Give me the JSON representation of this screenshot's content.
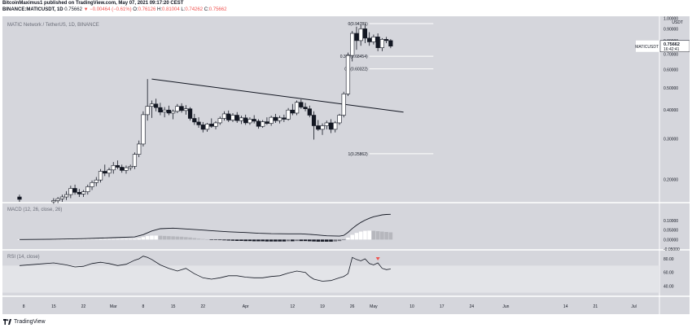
{
  "header": {
    "publish_line": "BitcoinMaximus1 published on TradingView.com, May 07, 2021 09:17:20 CEST",
    "symbol": "BINANCE:MATICUSDT, 1D",
    "last": "0.75662",
    "change": "▼ −0.00464 (−0.61%)",
    "o_label": "O:",
    "o": "0.76126",
    "h_label": "H:",
    "h": "0.81004",
    "l_label": "L:",
    "l": "0.74262",
    "c_label": "C:",
    "c": "0.75662"
  },
  "colors": {
    "pane_bg": "#d5d6dc",
    "up_candle": "#ffffff",
    "down_candle": "#131722",
    "line": "#131722",
    "rsi_signal": "#ef5350"
  },
  "footer": {
    "brand": "TradingView"
  },
  "chart_data": [
    {
      "type": "candlestick",
      "title": "MATIC Network / TetherUS, 1D, BINANCE",
      "currency": "USDT",
      "y_scale": "log",
      "ylim": [
        0.16,
        1.02
      ],
      "y_ticks": [
        {
          "value": 1.0,
          "label": "1.00000"
        },
        {
          "value": 0.9,
          "label": "0.90000"
        },
        {
          "value": 0.8,
          "label": "0.80000"
        },
        {
          "value": 0.7,
          "label": "0.70000"
        },
        {
          "value": 0.6,
          "label": "0.60000"
        },
        {
          "value": 0.5,
          "label": "0.50000"
        },
        {
          "value": 0.4,
          "label": "0.40000"
        },
        {
          "value": 0.3,
          "label": "0.30000"
        },
        {
          "value": 0.2,
          "label": "0.20000"
        }
      ],
      "price_badge": {
        "symbol": "MATICUSDT",
        "value": 0.75662,
        "label": "0.75662",
        "countdown": "16:42:41"
      },
      "fib_levels": [
        {
          "value": 0.94781,
          "label": "0(0.94781)"
        },
        {
          "value": 0.68454,
          "label": "0.382(0.68454)"
        },
        {
          "value": 0.60322,
          "label": "0.5(0.60322)"
        },
        {
          "value": 0.25862,
          "label": "1(0.25862)"
        }
      ],
      "trendline": {
        "from": {
          "day": 38,
          "value": 0.545
        },
        "to": {
          "day": 97,
          "value": 0.392
        }
      },
      "x_ticks": [
        {
          "day": 8,
          "label": "8"
        },
        {
          "day": 15,
          "label": "15"
        },
        {
          "day": 22,
          "label": "22"
        },
        {
          "day": 29,
          "label": "Mar"
        },
        {
          "day": 36,
          "label": "8"
        },
        {
          "day": 43,
          "label": "15"
        },
        {
          "day": 50,
          "label": "22"
        },
        {
          "day": 60,
          "label": "Apr"
        },
        {
          "day": 71,
          "label": "12"
        },
        {
          "day": 78,
          "label": "19"
        },
        {
          "day": 85,
          "label": "26"
        },
        {
          "day": 90,
          "label": "May"
        },
        {
          "day": 99,
          "label": "10"
        },
        {
          "day": 106,
          "label": "17"
        },
        {
          "day": 113,
          "label": "24"
        },
        {
          "day": 121,
          "label": "Jun"
        },
        {
          "day": 135,
          "label": "14"
        },
        {
          "day": 142,
          "label": "21"
        },
        {
          "day": 151,
          "label": "Jul"
        }
      ],
      "x_range": [
        3,
        157
      ],
      "candles": [
        {
          "day": 7,
          "o": 0.168,
          "h": 0.172,
          "l": 0.16,
          "c": 0.164
        },
        {
          "day": 15,
          "o": 0.16,
          "h": 0.166,
          "l": 0.157,
          "c": 0.162
        },
        {
          "day": 16,
          "o": 0.162,
          "h": 0.168,
          "l": 0.158,
          "c": 0.165
        },
        {
          "day": 17,
          "o": 0.165,
          "h": 0.172,
          "l": 0.16,
          "c": 0.168
        },
        {
          "day": 18,
          "o": 0.168,
          "h": 0.178,
          "l": 0.163,
          "c": 0.172
        },
        {
          "day": 19,
          "o": 0.172,
          "h": 0.188,
          "l": 0.166,
          "c": 0.183
        },
        {
          "day": 20,
          "o": 0.183,
          "h": 0.19,
          "l": 0.172,
          "c": 0.176
        },
        {
          "day": 21,
          "o": 0.176,
          "h": 0.182,
          "l": 0.168,
          "c": 0.173
        },
        {
          "day": 22,
          "o": 0.173,
          "h": 0.18,
          "l": 0.168,
          "c": 0.177
        },
        {
          "day": 23,
          "o": 0.177,
          "h": 0.19,
          "l": 0.172,
          "c": 0.186
        },
        {
          "day": 24,
          "o": 0.186,
          "h": 0.198,
          "l": 0.18,
          "c": 0.194
        },
        {
          "day": 25,
          "o": 0.194,
          "h": 0.205,
          "l": 0.187,
          "c": 0.199
        },
        {
          "day": 26,
          "o": 0.199,
          "h": 0.222,
          "l": 0.194,
          "c": 0.217
        },
        {
          "day": 27,
          "o": 0.217,
          "h": 0.232,
          "l": 0.207,
          "c": 0.213
        },
        {
          "day": 28,
          "o": 0.213,
          "h": 0.225,
          "l": 0.205,
          "c": 0.22
        },
        {
          "day": 29,
          "o": 0.22,
          "h": 0.238,
          "l": 0.212,
          "c": 0.23
        },
        {
          "day": 30,
          "o": 0.23,
          "h": 0.242,
          "l": 0.222,
          "c": 0.226
        },
        {
          "day": 31,
          "o": 0.226,
          "h": 0.232,
          "l": 0.214,
          "c": 0.219
        },
        {
          "day": 32,
          "o": 0.219,
          "h": 0.23,
          "l": 0.212,
          "c": 0.225
        },
        {
          "day": 33,
          "o": 0.225,
          "h": 0.232,
          "l": 0.219,
          "c": 0.228
        },
        {
          "day": 34,
          "o": 0.228,
          "h": 0.262,
          "l": 0.222,
          "c": 0.257
        },
        {
          "day": 35,
          "o": 0.257,
          "h": 0.295,
          "l": 0.25,
          "c": 0.285
        },
        {
          "day": 36,
          "o": 0.285,
          "h": 0.395,
          "l": 0.278,
          "c": 0.382
        },
        {
          "day": 37,
          "o": 0.382,
          "h": 0.545,
          "l": 0.36,
          "c": 0.415
        },
        {
          "day": 38,
          "o": 0.415,
          "h": 0.44,
          "l": 0.37,
          "c": 0.425
        },
        {
          "day": 39,
          "o": 0.425,
          "h": 0.448,
          "l": 0.395,
          "c": 0.41
        },
        {
          "day": 40,
          "o": 0.41,
          "h": 0.43,
          "l": 0.38,
          "c": 0.392
        },
        {
          "day": 41,
          "o": 0.392,
          "h": 0.412,
          "l": 0.372,
          "c": 0.4
        },
        {
          "day": 42,
          "o": 0.4,
          "h": 0.418,
          "l": 0.38,
          "c": 0.388
        },
        {
          "day": 43,
          "o": 0.388,
          "h": 0.402,
          "l": 0.365,
          "c": 0.395
        },
        {
          "day": 44,
          "o": 0.395,
          "h": 0.425,
          "l": 0.388,
          "c": 0.415
        },
        {
          "day": 45,
          "o": 0.415,
          "h": 0.428,
          "l": 0.39,
          "c": 0.398
        },
        {
          "day": 46,
          "o": 0.398,
          "h": 0.42,
          "l": 0.382,
          "c": 0.405
        },
        {
          "day": 47,
          "o": 0.405,
          "h": 0.412,
          "l": 0.36,
          "c": 0.368
        },
        {
          "day": 48,
          "o": 0.368,
          "h": 0.385,
          "l": 0.345,
          "c": 0.355
        },
        {
          "day": 49,
          "o": 0.355,
          "h": 0.372,
          "l": 0.335,
          "c": 0.345
        },
        {
          "day": 50,
          "o": 0.345,
          "h": 0.355,
          "l": 0.32,
          "c": 0.33
        },
        {
          "day": 51,
          "o": 0.33,
          "h": 0.352,
          "l": 0.322,
          "c": 0.348
        },
        {
          "day": 52,
          "o": 0.348,
          "h": 0.368,
          "l": 0.335,
          "c": 0.34
        },
        {
          "day": 53,
          "o": 0.34,
          "h": 0.358,
          "l": 0.33,
          "c": 0.352
        },
        {
          "day": 54,
          "o": 0.352,
          "h": 0.375,
          "l": 0.345,
          "c": 0.368
        },
        {
          "day": 55,
          "o": 0.368,
          "h": 0.395,
          "l": 0.36,
          "c": 0.385
        },
        {
          "day": 56,
          "o": 0.385,
          "h": 0.398,
          "l": 0.355,
          "c": 0.362
        },
        {
          "day": 57,
          "o": 0.362,
          "h": 0.388,
          "l": 0.355,
          "c": 0.38
        },
        {
          "day": 58,
          "o": 0.38,
          "h": 0.392,
          "l": 0.352,
          "c": 0.36
        },
        {
          "day": 59,
          "o": 0.36,
          "h": 0.378,
          "l": 0.348,
          "c": 0.37
        },
        {
          "day": 60,
          "o": 0.37,
          "h": 0.382,
          "l": 0.345,
          "c": 0.352
        },
        {
          "day": 61,
          "o": 0.352,
          "h": 0.372,
          "l": 0.345,
          "c": 0.365
        },
        {
          "day": 62,
          "o": 0.365,
          "h": 0.38,
          "l": 0.35,
          "c": 0.358
        },
        {
          "day": 63,
          "o": 0.358,
          "h": 0.365,
          "l": 0.332,
          "c": 0.34
        },
        {
          "day": 64,
          "o": 0.34,
          "h": 0.362,
          "l": 0.335,
          "c": 0.356
        },
        {
          "day": 65,
          "o": 0.356,
          "h": 0.372,
          "l": 0.345,
          "c": 0.35
        },
        {
          "day": 66,
          "o": 0.35,
          "h": 0.378,
          "l": 0.342,
          "c": 0.372
        },
        {
          "day": 67,
          "o": 0.372,
          "h": 0.385,
          "l": 0.352,
          "c": 0.36
        },
        {
          "day": 68,
          "o": 0.36,
          "h": 0.378,
          "l": 0.35,
          "c": 0.37
        },
        {
          "day": 69,
          "o": 0.37,
          "h": 0.382,
          "l": 0.355,
          "c": 0.365
        },
        {
          "day": 70,
          "o": 0.365,
          "h": 0.408,
          "l": 0.36,
          "c": 0.4
        },
        {
          "day": 71,
          "o": 0.4,
          "h": 0.425,
          "l": 0.38,
          "c": 0.388
        },
        {
          "day": 72,
          "o": 0.388,
          "h": 0.44,
          "l": 0.38,
          "c": 0.432
        },
        {
          "day": 73,
          "o": 0.432,
          "h": 0.445,
          "l": 0.405,
          "c": 0.412
        },
        {
          "day": 74,
          "o": 0.412,
          "h": 0.43,
          "l": 0.395,
          "c": 0.405
        },
        {
          "day": 75,
          "o": 0.405,
          "h": 0.418,
          "l": 0.372,
          "c": 0.38
        },
        {
          "day": 76,
          "o": 0.38,
          "h": 0.395,
          "l": 0.298,
          "c": 0.342
        },
        {
          "day": 77,
          "o": 0.342,
          "h": 0.362,
          "l": 0.325,
          "c": 0.33
        },
        {
          "day": 78,
          "o": 0.33,
          "h": 0.35,
          "l": 0.312,
          "c": 0.342
        },
        {
          "day": 79,
          "o": 0.342,
          "h": 0.36,
          "l": 0.33,
          "c": 0.352
        },
        {
          "day": 80,
          "o": 0.352,
          "h": 0.365,
          "l": 0.318,
          "c": 0.33
        },
        {
          "day": 81,
          "o": 0.33,
          "h": 0.358,
          "l": 0.32,
          "c": 0.352
        },
        {
          "day": 82,
          "o": 0.352,
          "h": 0.385,
          "l": 0.345,
          "c": 0.38
        },
        {
          "day": 83,
          "o": 0.38,
          "h": 0.48,
          "l": 0.372,
          "c": 0.47
        },
        {
          "day": 84,
          "o": 0.47,
          "h": 0.71,
          "l": 0.46,
          "c": 0.69
        },
        {
          "day": 85,
          "o": 0.69,
          "h": 0.88,
          "l": 0.65,
          "c": 0.86
        },
        {
          "day": 86,
          "o": 0.86,
          "h": 0.92,
          "l": 0.73,
          "c": 0.8
        },
        {
          "day": 87,
          "o": 0.8,
          "h": 0.94,
          "l": 0.76,
          "c": 0.9
        },
        {
          "day": 88,
          "o": 0.9,
          "h": 0.95,
          "l": 0.78,
          "c": 0.82
        },
        {
          "day": 89,
          "o": 0.82,
          "h": 0.87,
          "l": 0.76,
          "c": 0.79
        },
        {
          "day": 90,
          "o": 0.79,
          "h": 0.85,
          "l": 0.77,
          "c": 0.83
        },
        {
          "day": 91,
          "o": 0.83,
          "h": 0.86,
          "l": 0.72,
          "c": 0.745
        },
        {
          "day": 92,
          "o": 0.745,
          "h": 0.82,
          "l": 0.72,
          "c": 0.81
        },
        {
          "day": 93,
          "o": 0.81,
          "h": 0.83,
          "l": 0.78,
          "c": 0.8
        },
        {
          "day": 94,
          "o": 0.8,
          "h": 0.812,
          "l": 0.742,
          "c": 0.757
        }
      ]
    },
    {
      "type": "bar",
      "title": "MACD (12, 26, close, 26)",
      "ylim": [
        -0.05,
        0.19
      ],
      "y_ticks": [
        {
          "value": 0.1,
          "label": "0.10000"
        },
        {
          "value": 0.05,
          "label": "0.05000"
        },
        {
          "value": 0.0,
          "label": "0.00000"
        },
        {
          "value": -0.05,
          "label": "-0.05000"
        }
      ],
      "histogram_days": [
        7,
        15,
        16,
        17,
        18,
        19,
        20,
        21,
        22,
        23,
        24,
        25,
        26,
        27,
        28,
        29,
        30,
        31,
        32,
        33,
        34,
        35,
        36,
        37,
        38,
        39,
        40,
        41,
        42,
        43,
        44,
        45,
        46,
        47,
        48,
        49,
        50,
        51,
        52,
        53,
        54,
        55,
        56,
        57,
        58,
        59,
        60,
        61,
        62,
        63,
        64,
        65,
        66,
        67,
        68,
        69,
        70,
        71,
        72,
        73,
        74,
        75,
        76,
        77,
        78,
        79,
        80,
        81,
        82,
        83,
        84,
        85,
        86,
        87,
        88,
        89,
        90,
        91,
        92,
        93,
        94
      ],
      "histogram": [
        0.0,
        0.001,
        0.001,
        0.001,
        0.002,
        0.002,
        0.002,
        0.002,
        0.002,
        0.003,
        0.003,
        0.003,
        0.004,
        0.004,
        0.004,
        0.004,
        0.004,
        0.004,
        0.004,
        0.004,
        0.005,
        0.007,
        0.013,
        0.019,
        0.021,
        0.021,
        0.02,
        0.019,
        0.018,
        0.017,
        0.016,
        0.015,
        0.013,
        0.011,
        0.008,
        0.005,
        0.003,
        0.001,
        -0.001,
        -0.002,
        -0.003,
        -0.004,
        -0.005,
        -0.006,
        -0.007,
        -0.007,
        -0.008,
        -0.008,
        -0.009,
        -0.009,
        -0.009,
        -0.01,
        -0.01,
        -0.01,
        -0.01,
        -0.01,
        -0.009,
        -0.009,
        -0.008,
        -0.008,
        -0.008,
        -0.009,
        -0.01,
        -0.011,
        -0.011,
        -0.011,
        -0.011,
        -0.01,
        -0.008,
        -0.003,
        0.01,
        0.025,
        0.035,
        0.042,
        0.046,
        0.047,
        0.046,
        0.044,
        0.042,
        0.04,
        0.038
      ],
      "macd_line_days": [
        7,
        15,
        22,
        29,
        34,
        36,
        38,
        40,
        43,
        46,
        50,
        53,
        56,
        60,
        63,
        66,
        70,
        73,
        76,
        79,
        82,
        83,
        84,
        85,
        86,
        87,
        88,
        89,
        90,
        91,
        92,
        93,
        94
      ],
      "macd_line": [
        0.0,
        0.002,
        0.005,
        0.01,
        0.014,
        0.026,
        0.045,
        0.057,
        0.06,
        0.056,
        0.05,
        0.045,
        0.041,
        0.037,
        0.033,
        0.031,
        0.03,
        0.03,
        0.026,
        0.02,
        0.018,
        0.022,
        0.038,
        0.058,
        0.075,
        0.09,
        0.102,
        0.112,
        0.12,
        0.125,
        0.13,
        0.132,
        0.133
      ]
    },
    {
      "type": "line",
      "title": "RSI (14, close)",
      "ylim": [
        26,
        92
      ],
      "y_ticks": [
        {
          "value": 80,
          "label": "80.00"
        },
        {
          "value": 60,
          "label": "60.00"
        },
        {
          "value": 40,
          "label": "40.00"
        }
      ],
      "bands": [
        70,
        30
      ],
      "days": [
        7,
        11,
        15,
        18,
        20,
        22,
        24,
        26,
        28,
        30,
        32,
        34,
        35,
        36,
        37,
        38,
        40,
        42,
        44,
        46,
        48,
        50,
        52,
        54,
        56,
        58,
        60,
        62,
        64,
        66,
        68,
        70,
        72,
        74,
        75,
        76,
        78,
        80,
        82,
        83,
        84,
        85,
        86,
        87,
        88,
        89,
        90,
        91,
        92,
        93,
        94
      ],
      "values": [
        70,
        72,
        74,
        71,
        68,
        69,
        73,
        75,
        73,
        70,
        72,
        78,
        80,
        84,
        82,
        79,
        71,
        66,
        62,
        66,
        58,
        52,
        50,
        52,
        55,
        55,
        53,
        52,
        52,
        54,
        55,
        59,
        62,
        60,
        54,
        50,
        47,
        48,
        52,
        54,
        58,
        82,
        79,
        77,
        80,
        73,
        71,
        74,
        66,
        64,
        65
      ],
      "signal_marker": {
        "day": 91,
        "value": 80
      }
    }
  ]
}
